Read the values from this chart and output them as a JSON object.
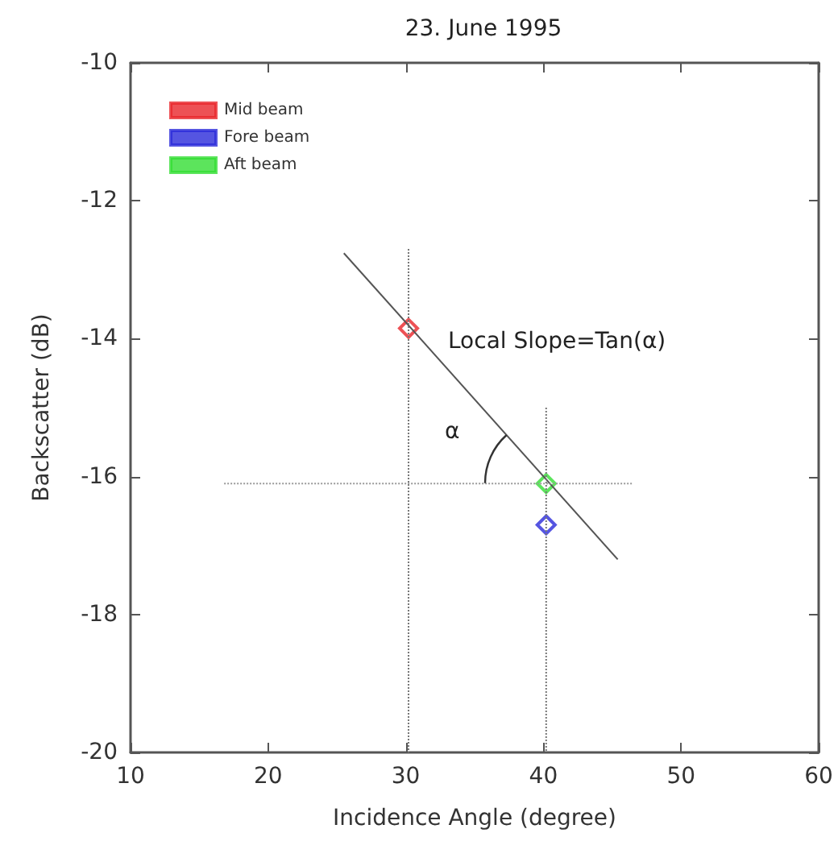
{
  "chart_data": {
    "type": "scatter",
    "title": "23. June 1995",
    "xlabel": "Incidence Angle (degree)",
    "ylabel": "Backscatter (dB)",
    "xlim": [
      10,
      60
    ],
    "xticks": [
      10,
      20,
      30,
      40,
      50,
      60
    ],
    "ylim": [
      -20,
      -10
    ],
    "yticks": [
      -20,
      -18,
      -16,
      -14,
      -12,
      -10
    ],
    "grid": false,
    "legend": "top left",
    "marker": "diamond",
    "series": [
      {
        "type": "line",
        "color": "#555555",
        "x": [
          25.5,
          45.4
        ],
        "values": [
          -12.76,
          -17.2
        ],
        "line_style": "solid",
        "marker": "none"
      },
      {
        "type": "line",
        "color": "#777777",
        "x": [
          30.2,
          30.2
        ],
        "values": [
          -12.7,
          -20
        ],
        "line_style": "dotted",
        "marker": "none"
      },
      {
        "type": "line",
        "color": "#777777",
        "x": [
          40.2,
          40.2
        ],
        "values": [
          -15,
          -20
        ],
        "line_style": "dotted",
        "marker": "none"
      },
      {
        "type": "line",
        "color": "#999999",
        "x": [
          16.8,
          46.5
        ],
        "values": [
          -16.1,
          -16.1
        ],
        "line_style": "dotted",
        "marker": "none"
      },
      {
        "name": "Mid beam",
        "color": "#e8262a",
        "x": [
          30.2
        ],
        "values": [
          -13.85
        ]
      },
      {
        "name": "Fore beam",
        "color": "#2b2bd9",
        "x": [
          40.2
        ],
        "values": [
          -16.7
        ]
      },
      {
        "name": "Aft beam",
        "color": "#33dd33",
        "x": [
          40.2
        ],
        "values": [
          -16.1
        ]
      }
    ],
    "annotations": [
      "Local Slope=Tan(α)",
      "α"
    ]
  }
}
